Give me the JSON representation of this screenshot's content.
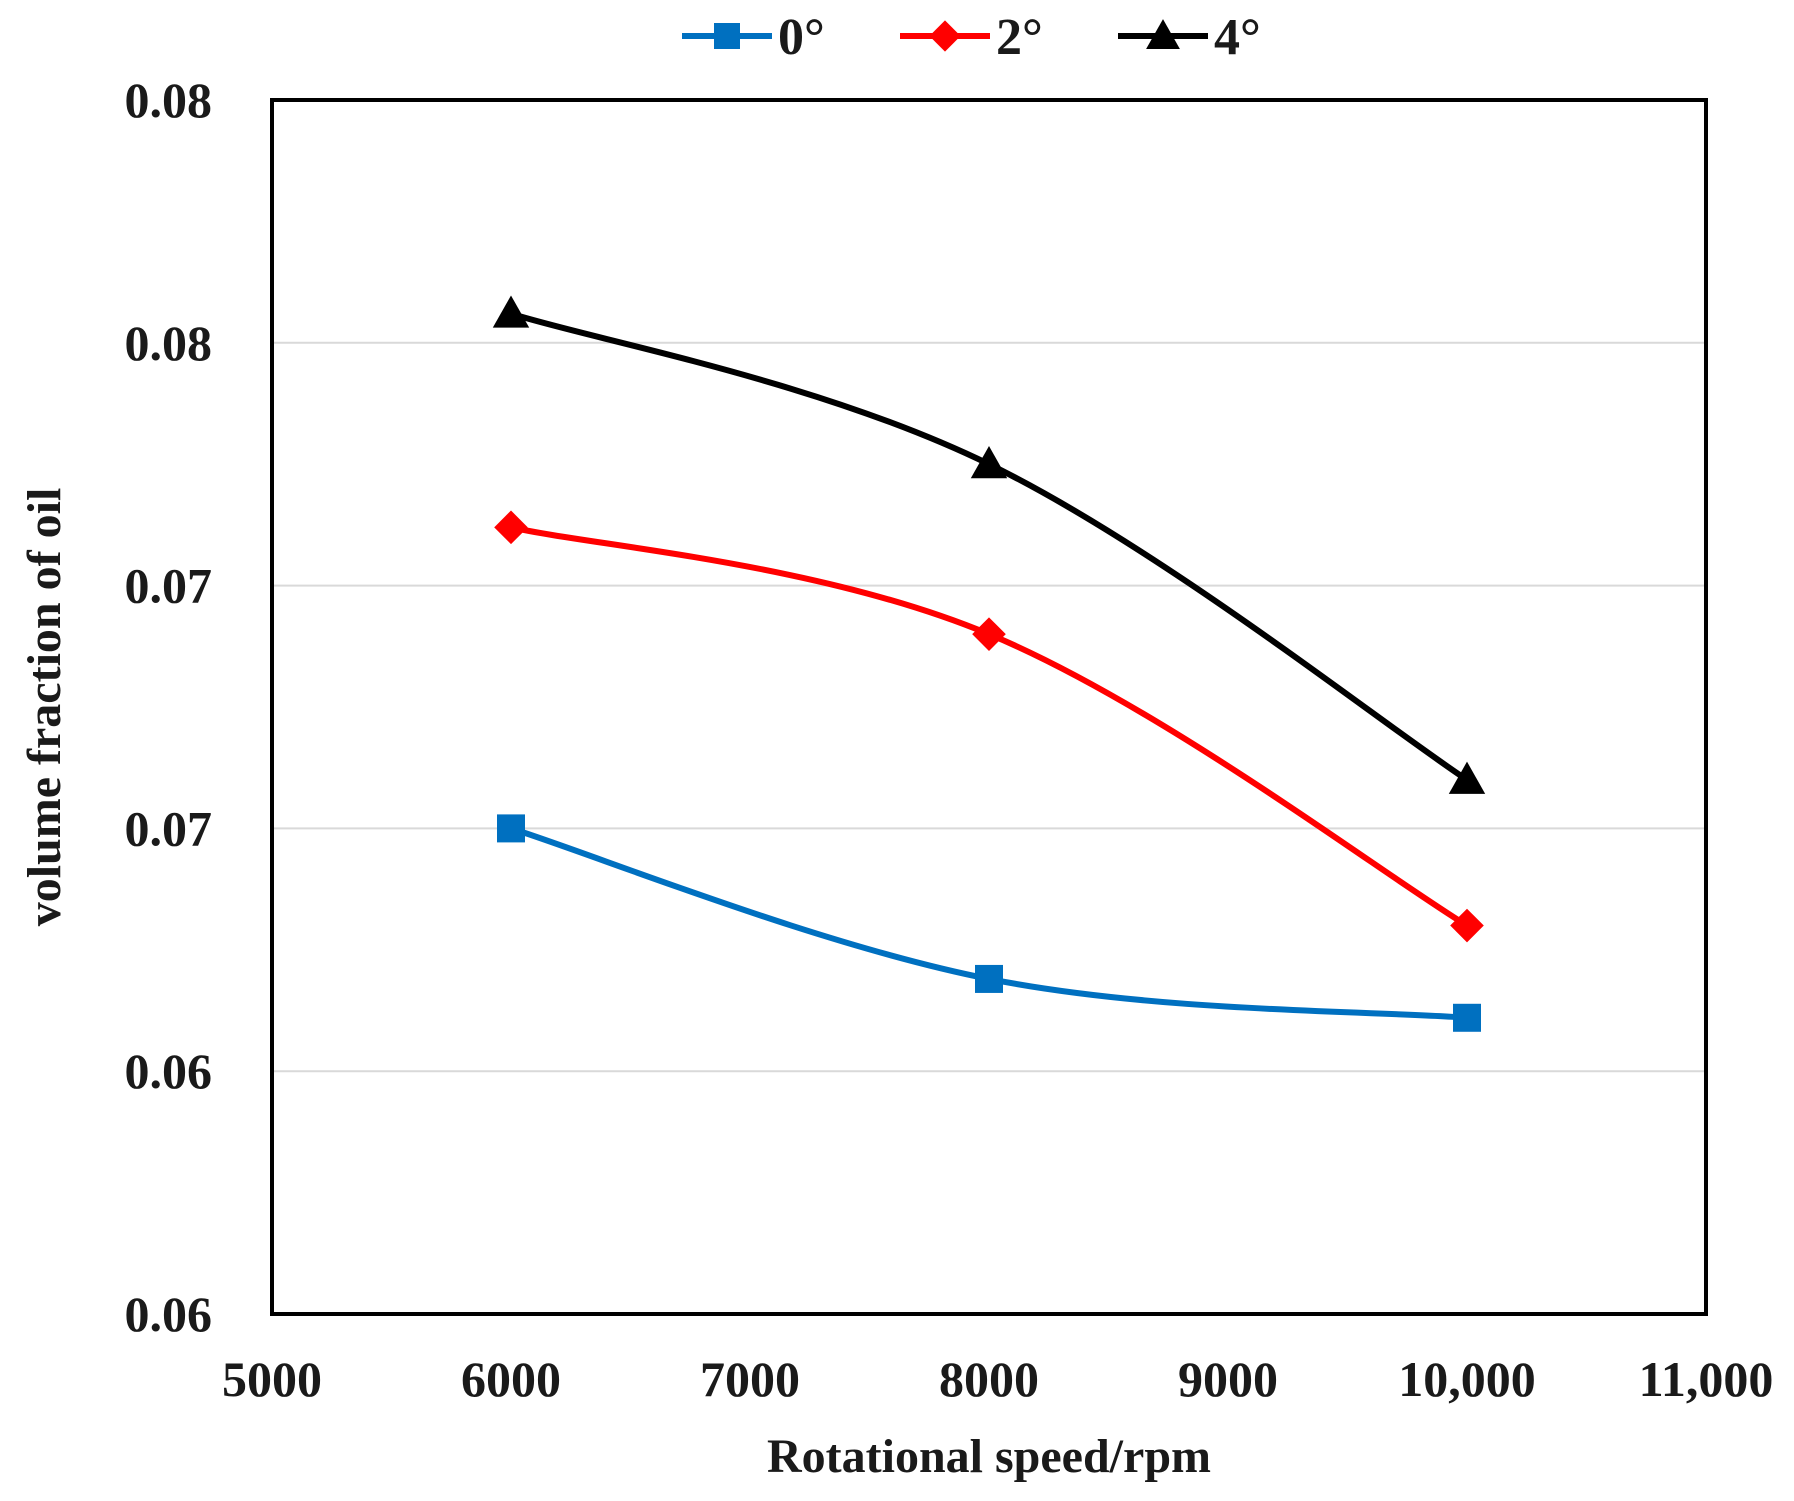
{
  "chart_data": {
    "type": "line",
    "title": "",
    "xlabel": "Rotational speed/rpm",
    "ylabel": "volume fraction of oil",
    "xlim": [
      5000,
      11000
    ],
    "ylim": [
      0.06,
      0.085
    ],
    "x_ticks": [
      5000,
      6000,
      7000,
      8000,
      9000,
      10000,
      11000
    ],
    "x_tick_labels": [
      "5000",
      "6000",
      "7000",
      "8000",
      "9000",
      "10,000",
      "11,000"
    ],
    "y_ticks": [
      0.06,
      0.065,
      0.07,
      0.075,
      0.08,
      0.085
    ],
    "y_tick_labels": [
      "0.06",
      "0.06",
      "0.07",
      "0.07",
      "0.08",
      "0.08"
    ],
    "grid": "horizontal",
    "legend_position": "top-center",
    "series": [
      {
        "name": "0°",
        "color": "#0070c0",
        "marker": "square",
        "x": [
          6000,
          8000,
          10000
        ],
        "values": [
          0.07,
          0.0669,
          0.0661
        ]
      },
      {
        "name": "2°",
        "color": "#ff0000",
        "marker": "diamond",
        "x": [
          6000,
          8000,
          10000
        ],
        "values": [
          0.0762,
          0.074,
          0.068
        ]
      },
      {
        "name": "4°",
        "color": "#000000",
        "marker": "triangle",
        "x": [
          6000,
          8000,
          10000
        ],
        "values": [
          0.0806,
          0.0775,
          0.071
        ]
      }
    ]
  }
}
